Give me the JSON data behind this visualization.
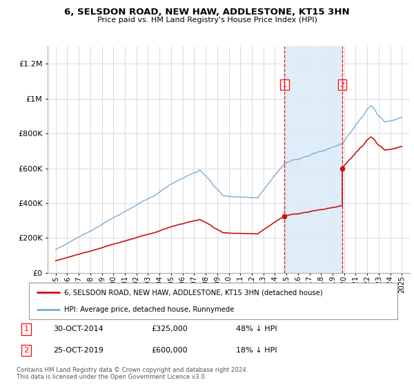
{
  "title": "6, SELSDON ROAD, NEW HAW, ADDLESTONE, KT15 3HN",
  "subtitle": "Price paid vs. HM Land Registry's House Price Index (HPI)",
  "legend_line1": "6, SELSDON ROAD, NEW HAW, ADDLESTONE, KT15 3HN (detached house)",
  "legend_line2": "HPI: Average price, detached house, Runnymede",
  "footnote1": "Contains HM Land Registry data © Crown copyright and database right 2024.",
  "footnote2": "This data is licensed under the Open Government Licence v3.0.",
  "sale1_date": "30-OCT-2014",
  "sale1_price": "£325,000",
  "sale1_note": "48% ↓ HPI",
  "sale2_date": "25-OCT-2019",
  "sale2_price": "£600,000",
  "sale2_note": "18% ↓ HPI",
  "hpi_color": "#7aadd4",
  "price_color": "#cc1111",
  "shade_color": "#daeaf7",
  "ylim": [
    0,
    1300000
  ],
  "yticks": [
    0,
    200000,
    400000,
    600000,
    800000,
    1000000,
    1200000
  ],
  "ytick_labels": [
    "£0",
    "£200K",
    "£400K",
    "£600K",
    "£800K",
    "£1M",
    "£1.2M"
  ],
  "sale1_year": 2014.83,
  "sale2_year": 2019.83,
  "sale1_price_val": 325000,
  "sale2_price_val": 600000,
  "hpi_at_sale1": 625000,
  "hpi_at_sale2": 731707
}
